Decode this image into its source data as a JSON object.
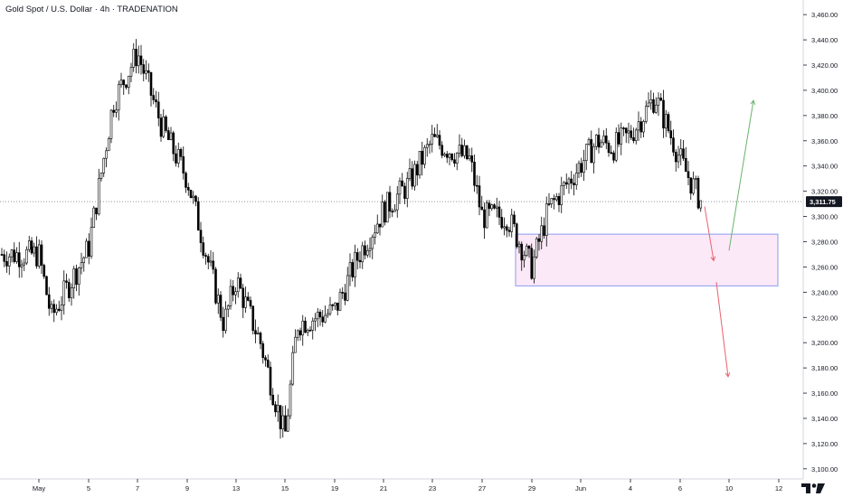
{
  "header": {
    "title": "Gold Spot / U.S. Dollar · 4h · TRADENATION"
  },
  "price_badge": {
    "label": "3,311.75",
    "color": "#131722"
  },
  "colors": {
    "up_candle": "#ffffff",
    "down_candle": "#000000",
    "zone_fill": "#fce9f7",
    "zone_border": "#8c9bf0",
    "arrow_down": "#e8606e",
    "arrow_up": "#6ab26d",
    "price_line": "#9598a1"
  },
  "chart_data": {
    "type": "candlestick",
    "title": "Gold Spot / U.S. Dollar · 4h · TRADENATION",
    "xlabel": "",
    "ylabel": "",
    "ylim": [
      3092,
      3468
    ],
    "y_ticks": [
      3100,
      3120,
      3140,
      3160,
      3180,
      3200,
      3220,
      3240,
      3260,
      3280,
      3300,
      3320,
      3340,
      3360,
      3380,
      3400,
      3420,
      3440,
      3460
    ],
    "y_tick_labels": [
      "3,100.00",
      "3,120.00",
      "3,140.00",
      "3,160.00",
      "3,180.00",
      "3,200.00",
      "3,220.00",
      "3,240.00",
      "3,260.00",
      "3,280.00",
      "3,300.00",
      "3,320.00",
      "3,340.00",
      "3,360.00",
      "3,380.00",
      "3,400.00",
      "3,420.00",
      "3,440.00",
      "3,460.00"
    ],
    "x_ticks": [
      {
        "label": "May",
        "date": "2025-05-01"
      },
      {
        "label": "5",
        "date": "2025-05-05"
      },
      {
        "label": "7",
        "date": "2025-05-07"
      },
      {
        "label": "9",
        "date": "2025-05-09"
      },
      {
        "label": "13",
        "date": "2025-05-13"
      },
      {
        "label": "15",
        "date": "2025-05-15"
      },
      {
        "label": "19",
        "date": "2025-05-19"
      },
      {
        "label": "21",
        "date": "2025-05-21"
      },
      {
        "label": "23",
        "date": "2025-05-23"
      },
      {
        "label": "27",
        "date": "2025-05-27"
      },
      {
        "label": "29",
        "date": "2025-05-29"
      },
      {
        "label": "Jun",
        "date": "2025-06-01"
      },
      {
        "label": "4",
        "date": "2025-06-04"
      },
      {
        "label": "6",
        "date": "2025-06-06"
      },
      {
        "label": "10",
        "date": "2025-06-10"
      },
      {
        "label": "12",
        "date": "2025-06-12"
      }
    ],
    "current_price": 3311.75,
    "key_prices": [
      {
        "date": "2025-05-01",
        "price": 3270
      },
      {
        "date": "2025-05-02",
        "price": 3220
      },
      {
        "date": "2025-05-05",
        "price": 3275
      },
      {
        "date": "2025-05-06",
        "price": 3390
      },
      {
        "date": "2025-05-07",
        "price": 3430
      },
      {
        "date": "2025-05-08",
        "price": 3370
      },
      {
        "date": "2025-05-09",
        "price": 3330
      },
      {
        "date": "2025-05-12",
        "price": 3215
      },
      {
        "date": "2025-05-13",
        "price": 3250
      },
      {
        "date": "2025-05-14",
        "price": 3200
      },
      {
        "date": "2025-05-15",
        "price": 3125
      },
      {
        "date": "2025-05-16",
        "price": 3215
      },
      {
        "date": "2025-05-19",
        "price": 3225
      },
      {
        "date": "2025-05-20",
        "price": 3270
      },
      {
        "date": "2025-05-21",
        "price": 3305
      },
      {
        "date": "2025-05-22",
        "price": 3325
      },
      {
        "date": "2025-05-23",
        "price": 3360
      },
      {
        "date": "2025-05-26",
        "price": 3345
      },
      {
        "date": "2025-05-27",
        "price": 3300
      },
      {
        "date": "2025-05-28",
        "price": 3300
      },
      {
        "date": "2025-05-29",
        "price": 3260
      },
      {
        "date": "2025-05-30",
        "price": 3305
      },
      {
        "date": "2025-06-02",
        "price": 3360
      },
      {
        "date": "2025-06-03",
        "price": 3355
      },
      {
        "date": "2025-06-04",
        "price": 3365
      },
      {
        "date": "2025-06-05",
        "price": 3395
      },
      {
        "date": "2025-06-06",
        "price": 3340
      },
      {
        "date": "2025-06-06",
        "price": 3312
      }
    ],
    "zone": {
      "from_date": "2025-05-28",
      "to_date": "2025-06-11",
      "price_low": 3245,
      "price_high": 3286
    },
    "projections": [
      {
        "name": "down-first-leg",
        "from_date": "2025-06-06",
        "from_price": 3308,
        "to_date": "2025-06-09",
        "to_price": 3265
      },
      {
        "name": "up-leg",
        "from_date": "2025-06-09",
        "from_price": 3273,
        "to_date": "2025-06-10",
        "to_price": 3392
      },
      {
        "name": "down-second-leg",
        "from_date": "2025-06-09",
        "from_price": 3248,
        "to_date": "2025-06-10",
        "to_price": 3173
      }
    ]
  }
}
